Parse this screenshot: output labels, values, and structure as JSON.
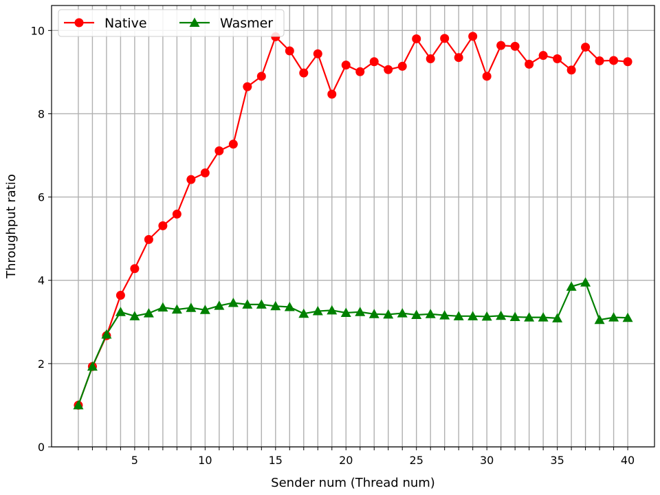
{
  "chart_data": {
    "type": "line",
    "title": "",
    "xlabel": "Sender num (Thread num)",
    "ylabel": "Throughput ratio",
    "xlim": [
      -0.9,
      41.9
    ],
    "ylim": [
      0,
      10.6
    ],
    "x_ticks": [
      1,
      2,
      3,
      4,
      5,
      6,
      7,
      8,
      9,
      10,
      11,
      12,
      13,
      14,
      15,
      16,
      17,
      18,
      19,
      20,
      21,
      22,
      23,
      24,
      25,
      26,
      27,
      28,
      29,
      30,
      31,
      32,
      33,
      34,
      35,
      36,
      37,
      38,
      39,
      40
    ],
    "x_tick_labels": [
      "5",
      "10",
      "15",
      "20",
      "25",
      "30",
      "35",
      "40"
    ],
    "x_tick_label_values": [
      5,
      10,
      15,
      20,
      25,
      30,
      35,
      40
    ],
    "y_ticks": [
      0,
      2,
      4,
      6,
      8,
      10
    ],
    "y_tick_labels": [
      "0",
      "2",
      "4",
      "6",
      "8",
      "10"
    ],
    "grid": true,
    "legend_position": "top-left",
    "x": [
      1,
      2,
      3,
      4,
      5,
      6,
      7,
      8,
      9,
      10,
      11,
      12,
      13,
      14,
      15,
      16,
      17,
      18,
      19,
      20,
      21,
      22,
      23,
      24,
      25,
      26,
      27,
      28,
      29,
      30,
      31,
      32,
      33,
      34,
      35,
      36,
      37,
      38,
      39,
      40
    ],
    "series": [
      {
        "name": "Native",
        "color": "#ff0000",
        "marker": "circle",
        "values": [
          1.0,
          1.93,
          2.67,
          3.64,
          4.28,
          4.98,
          5.31,
          5.59,
          6.42,
          6.58,
          7.11,
          7.27,
          8.65,
          8.9,
          9.85,
          9.51,
          8.98,
          9.44,
          8.47,
          9.17,
          9.01,
          9.25,
          9.06,
          9.14,
          9.8,
          9.32,
          9.81,
          9.35,
          9.86,
          8.9,
          9.64,
          9.62,
          9.19,
          9.4,
          9.32,
          9.05,
          9.6,
          9.27,
          9.28,
          9.25
        ]
      },
      {
        "name": "Wasmer",
        "color": "#008000",
        "marker": "triangle",
        "values": [
          1.0,
          1.93,
          2.7,
          3.24,
          3.14,
          3.21,
          3.35,
          3.3,
          3.34,
          3.29,
          3.39,
          3.46,
          3.42,
          3.42,
          3.38,
          3.36,
          3.2,
          3.26,
          3.28,
          3.22,
          3.24,
          3.19,
          3.18,
          3.21,
          3.17,
          3.19,
          3.16,
          3.14,
          3.14,
          3.13,
          3.15,
          3.12,
          3.11,
          3.11,
          3.09,
          3.85,
          3.95,
          3.05,
          3.11,
          3.1
        ]
      }
    ]
  }
}
